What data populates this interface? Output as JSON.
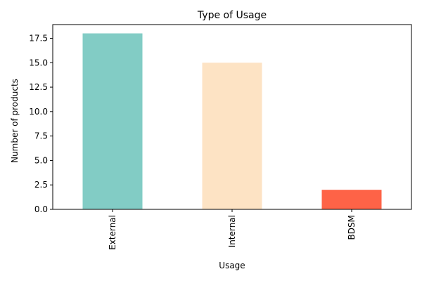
{
  "chart_data": {
    "type": "bar",
    "title": "Type of Usage",
    "xlabel": "Usage",
    "ylabel": "Number of products",
    "categories": [
      "External",
      "Internal",
      "BDSM"
    ],
    "values": [
      18,
      15,
      2
    ],
    "colors": [
      "#82ccc5",
      "#fde3c4",
      "#fe6347"
    ],
    "ylim": [
      0,
      18.9
    ],
    "yticks": [
      0.0,
      2.5,
      5.0,
      7.5,
      10.0,
      12.5,
      15.0,
      17.5
    ],
    "ytick_labels": [
      "0.0",
      "2.5",
      "5.0",
      "7.5",
      "10.0",
      "12.5",
      "15.0",
      "17.5"
    ],
    "xtick_rotation": "vertical",
    "grid": false,
    "legend": "none"
  }
}
